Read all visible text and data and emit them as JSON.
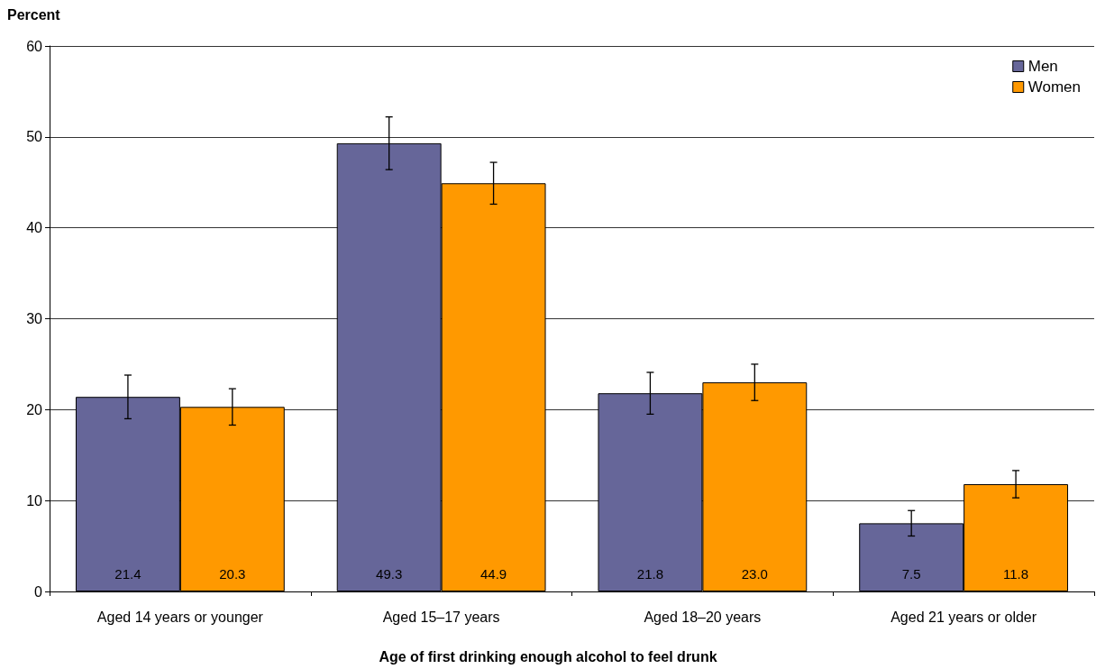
{
  "chart_data": {
    "type": "bar",
    "ylabel": "Percent",
    "xlabel": "Age of first drinking enough alcohol to feel drunk",
    "categories": [
      "Aged 14 years or younger",
      "Aged 15–17 years",
      "Aged 18–20 years",
      "Aged 21 years or older"
    ],
    "series": [
      {
        "name": "Men",
        "color": "#666699",
        "values": [
          21.4,
          49.3,
          21.8,
          7.5
        ],
        "errors": [
          2.4,
          2.9,
          2.3,
          1.4
        ],
        "value_labels": [
          "21.4",
          "49.3",
          "21.8",
          "7.5"
        ]
      },
      {
        "name": "Women",
        "color": "#ff9900",
        "values": [
          20.3,
          44.9,
          23.0,
          11.8
        ],
        "errors": [
          2.0,
          2.3,
          2.0,
          1.5
        ],
        "value_labels": [
          "20.3",
          "44.9",
          "23.0",
          "11.8"
        ]
      }
    ],
    "ylim": [
      0,
      60
    ],
    "yticks": [
      0,
      10,
      20,
      30,
      40,
      50,
      60
    ],
    "grid": "y",
    "legend": "top right"
  }
}
